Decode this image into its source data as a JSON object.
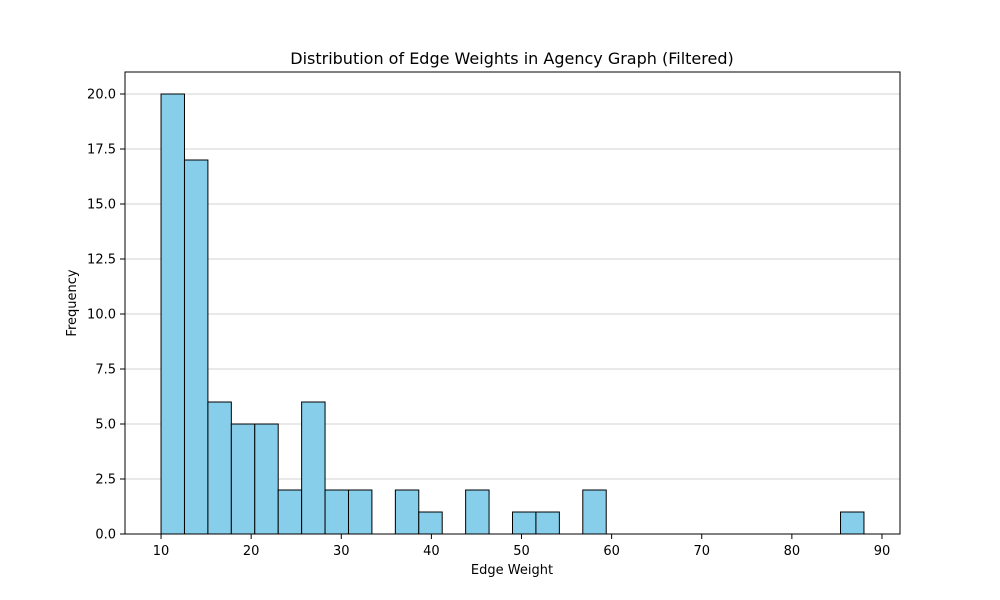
{
  "chart_data": {
    "type": "bar",
    "title": "Distribution of Edge Weights in Agency Graph (Filtered)",
    "xlabel": "Edge Weight",
    "ylabel": "Frequency",
    "xlim": [
      6,
      92
    ],
    "ylim": [
      0,
      21
    ],
    "bin_width": 2.6,
    "bins": [
      {
        "x0": 10.0,
        "x1": 12.6,
        "count": 20
      },
      {
        "x0": 12.6,
        "x1": 15.2,
        "count": 17
      },
      {
        "x0": 15.2,
        "x1": 17.8,
        "count": 6
      },
      {
        "x0": 17.8,
        "x1": 20.4,
        "count": 5
      },
      {
        "x0": 20.4,
        "x1": 23.0,
        "count": 5
      },
      {
        "x0": 23.0,
        "x1": 25.6,
        "count": 2
      },
      {
        "x0": 25.6,
        "x1": 28.2,
        "count": 6
      },
      {
        "x0": 28.2,
        "x1": 30.8,
        "count": 2
      },
      {
        "x0": 30.8,
        "x1": 33.4,
        "count": 2
      },
      {
        "x0": 36.0,
        "x1": 38.6,
        "count": 2
      },
      {
        "x0": 38.6,
        "x1": 41.2,
        "count": 1
      },
      {
        "x0": 43.8,
        "x1": 46.4,
        "count": 2
      },
      {
        "x0": 49.0,
        "x1": 51.6,
        "count": 1
      },
      {
        "x0": 51.6,
        "x1": 54.2,
        "count": 1
      },
      {
        "x0": 56.8,
        "x1": 59.4,
        "count": 2
      },
      {
        "x0": 85.4,
        "x1": 88.0,
        "count": 1
      }
    ],
    "xticks": [
      10,
      20,
      30,
      40,
      50,
      60,
      70,
      80,
      90
    ],
    "yticks": [
      "0.0",
      "2.5",
      "5.0",
      "7.5",
      "10.0",
      "12.5",
      "15.0",
      "17.5",
      "20.0"
    ],
    "ytick_values": [
      0,
      2.5,
      5,
      7.5,
      10,
      12.5,
      15,
      17.5,
      20
    ],
    "grid": "y",
    "colors": {
      "bar_fill": "#87ceeb",
      "bar_edge": "#000000",
      "grid": "#d3d3d3"
    }
  }
}
